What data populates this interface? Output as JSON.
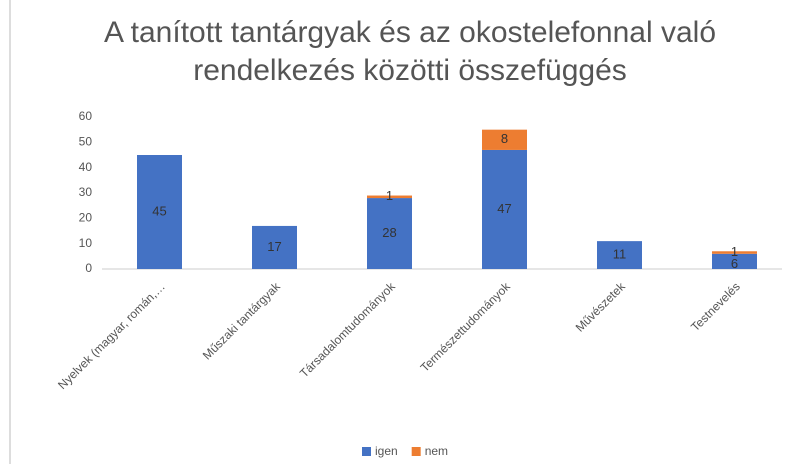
{
  "chart_data": {
    "type": "bar",
    "stacked": true,
    "title": "A tanított tantárgyak és az okostelefonnal való rendelkezés közötti összefüggés",
    "categories": [
      "Nyelvek (magyar, román,…",
      "Műszaki tantárgyak",
      "Társadalomtudományok",
      "Természettudományok",
      "Művészetek",
      "Testnevelés"
    ],
    "series": [
      {
        "name": "igen",
        "color": "#4472c4",
        "values": [
          45,
          17,
          28,
          47,
          11,
          6
        ]
      },
      {
        "name": "nem",
        "color": "#ed7d31",
        "values": [
          null,
          null,
          1,
          8,
          null,
          1
        ]
      }
    ],
    "ylim": [
      0,
      60
    ],
    "yticks": [
      0,
      10,
      20,
      30,
      40,
      50,
      60
    ],
    "grid": false,
    "legend": "bottom"
  }
}
